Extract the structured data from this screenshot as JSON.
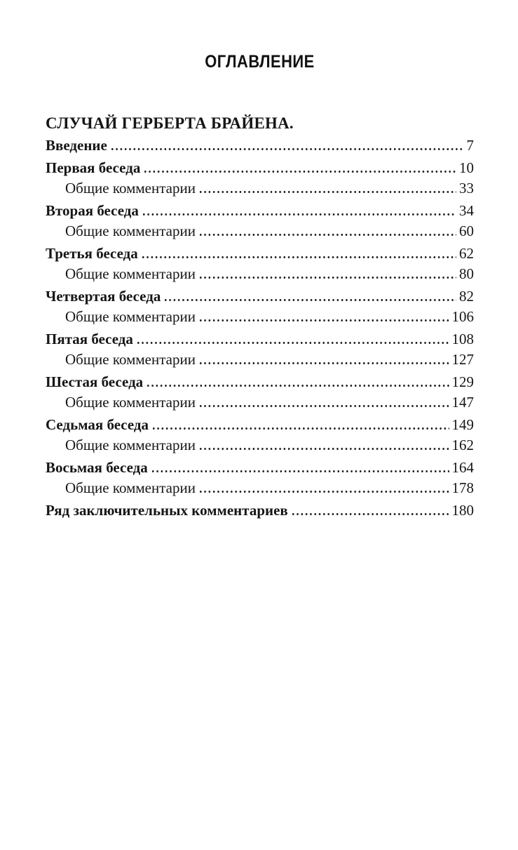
{
  "document": {
    "title": "ОГЛАВЛЕНИЕ",
    "section": {
      "heading": "СЛУЧАЙ ГЕРБЕРТА БРАЙЕНА.",
      "entries": [
        {
          "label": "Введение",
          "page": "7",
          "level": 0
        },
        {
          "label": "Первая беседа",
          "page": "10",
          "level": 0
        },
        {
          "label": "Общие комментарии",
          "page": "33",
          "level": 1
        },
        {
          "label": "Вторая беседа",
          "page": "34",
          "level": 0
        },
        {
          "label": "Общие комментарии",
          "page": "60",
          "level": 1
        },
        {
          "label": "Третья беседа",
          "page": "62",
          "level": 0
        },
        {
          "label": "Общие комментарии",
          "page": "80",
          "level": 1
        },
        {
          "label": "Четвертая беседа",
          "page": "82",
          "level": 0
        },
        {
          "label": "Общие комментарии",
          "page": "106",
          "level": 1
        },
        {
          "label": "Пятая беседа",
          "page": "108",
          "level": 0
        },
        {
          "label": "Общие комментарии",
          "page": "127",
          "level": 1
        },
        {
          "label": "Шестая беседа",
          "page": "129",
          "level": 0
        },
        {
          "label": "Общие комментарии",
          "page": "147",
          "level": 1
        },
        {
          "label": "Седьмая беседа",
          "page": "149",
          "level": 0
        },
        {
          "label": "Общие комментарии",
          "page": "162",
          "level": 1
        },
        {
          "label": "Восьмая беседа",
          "page": "164",
          "level": 0
        },
        {
          "label": "Общие комментарии",
          "page": "178",
          "level": 1
        },
        {
          "label": "Ряд заключительных комментариев",
          "page": "180",
          "level": 0
        }
      ]
    },
    "colors": {
      "text": "#161616",
      "background": "#ffffff"
    }
  }
}
